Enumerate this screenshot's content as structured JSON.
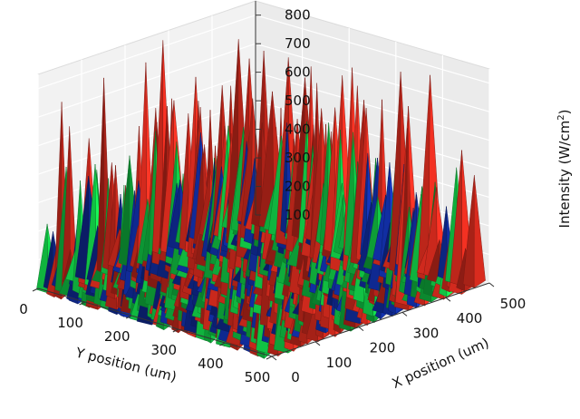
{
  "chart_data": {
    "type": "3d-surface",
    "title": "",
    "xlabel": "X position (um)",
    "ylabel": "Y position (um)",
    "zlabel_text": "Intensity (W/cm",
    "zlabel_sup": "2",
    "zlabel_close": ")",
    "xlim": [
      0,
      500
    ],
    "ylim": [
      0,
      500
    ],
    "zlim": [
      100,
      850
    ],
    "x_ticks": [
      "0",
      "100",
      "200",
      "300",
      "400",
      "500"
    ],
    "y_ticks": [
      "0",
      "100",
      "200",
      "300",
      "400",
      "500"
    ],
    "z_ticks": [
      "100",
      "200",
      "300",
      "400",
      "500",
      "600",
      "700",
      "800"
    ],
    "grid": true,
    "surfaces": [
      {
        "name": "green",
        "color": "#10b840",
        "peak_max": 560
      },
      {
        "name": "blue",
        "color": "#102c9a",
        "peak_max": 500
      },
      {
        "name": "red",
        "color": "#c8281c",
        "peak_max": 850
      }
    ]
  }
}
